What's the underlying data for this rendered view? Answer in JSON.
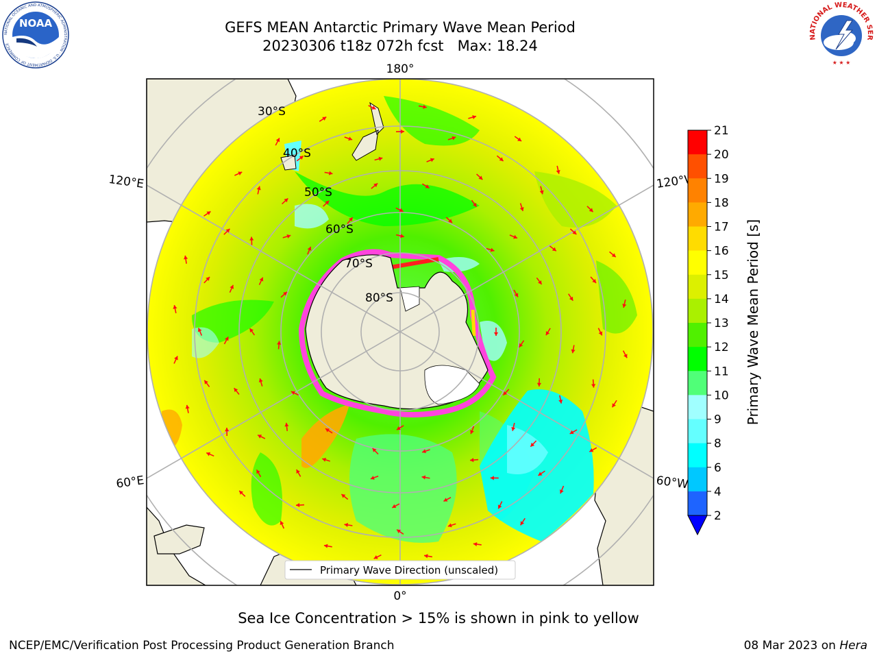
{
  "title": {
    "line1": "GEFS MEAN Antarctic Primary Wave Mean Period",
    "line2": "20230306 t18z 072h fcst   Max: 18.24"
  },
  "logos": {
    "left": "NOAA",
    "left_ring": "NATIONAL OCEANIC AND ATMOSPHERIC ADMINISTRATION · U.S. DEPARTMENT OF COMMERCE",
    "right_ring": "NATIONAL WEATHER SERVICE"
  },
  "map": {
    "projection": "south-polar-stereographic",
    "lon_labels": {
      "top": "180°",
      "bottom": "0°",
      "upper_left": "120°E",
      "lower_left": "60°E",
      "upper_right": "120°W",
      "lower_right": "60°W"
    },
    "lat_labels": [
      "30°S",
      "40°S",
      "50°S",
      "60°S",
      "70°S",
      "80°S"
    ],
    "legend": "Primary Wave Direction (unscaled)"
  },
  "colorbar": {
    "label": "Primary Wave Mean Period [s]",
    "ticks": [
      "2",
      "4",
      "6",
      "8",
      "9",
      "10",
      "11",
      "12",
      "13",
      "14",
      "15",
      "16",
      "17",
      "18",
      "19",
      "20",
      "21"
    ],
    "colors": [
      "#1e64ff",
      "#00c8ff",
      "#00ffff",
      "#64ffff",
      "#a0ffff",
      "#50ff78",
      "#00ff00",
      "#50f000",
      "#aaf000",
      "#dcf000",
      "#ffff00",
      "#ffdc00",
      "#ffaa00",
      "#ff8200",
      "#ff5000",
      "#ff2800"
    ],
    "extend_color": "#0000ff",
    "top_color": "#ff0000"
  },
  "chart_data": {
    "type": "heatmap",
    "title": "GEFS MEAN Antarctic Primary Wave Mean Period",
    "max": 18.24,
    "range": [
      2,
      21
    ],
    "units": "s",
    "overlay": "Sea ice concentration > 15% in pink to yellow"
  },
  "caption": "Sea Ice Concentration > 15% is shown in pink to yellow",
  "footer": {
    "left": "NCEP/EMC/Verification Post Processing Product Generation Branch",
    "right_date": "08 Mar 2023 on ",
    "right_host": "Hera"
  }
}
